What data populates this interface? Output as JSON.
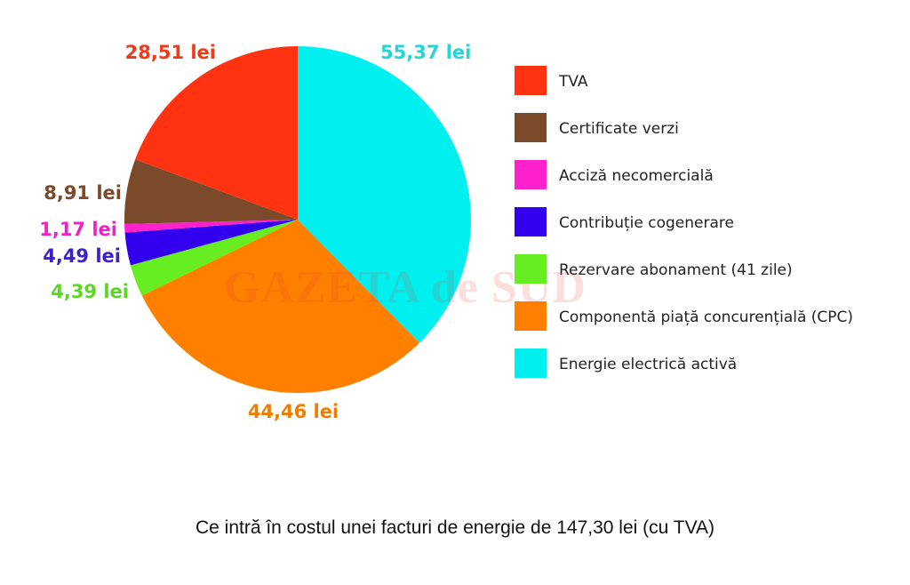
{
  "chart_data": {
    "type": "pie",
    "title": "Ce intră în costul unei facturi de energie de 147,30 lei (cu TVA)",
    "slices": [
      {
        "name": "Energie electrică activă",
        "value": 55.37,
        "label": "55,37 lei",
        "color": "#00f0f0",
        "label_color": "#22d6d6"
      },
      {
        "name": "Componentă piață concurențială (CPC)",
        "value": 44.46,
        "label": "44,46 lei",
        "color": "#ff8000",
        "label_color": "#f07d00"
      },
      {
        "name": "Rezervare abonament (41 zile)",
        "value": 4.39,
        "label": "4,39 lei",
        "color": "#66ee22",
        "label_color": "#5bd824"
      },
      {
        "name": "Contribuție cogenerare",
        "value": 4.49,
        "label": "4,49 lei",
        "color": "#3300ee",
        "label_color": "#3b1fd0"
      },
      {
        "name": "Acciză necomercială",
        "value": 1.17,
        "label": "1,17 lei",
        "color": "#ff22cc",
        "label_color": "#ee22c4"
      },
      {
        "name": "Certificate verzi",
        "value": 8.91,
        "label": "8,91 lei",
        "color": "#7a4a2a",
        "label_color": "#7a4a2a"
      },
      {
        "name": "TVA",
        "value": 28.51,
        "label": "28,51 lei",
        "color": "#ff3311",
        "label_color": "#f03a1a"
      }
    ],
    "legend_order": [
      "TVA",
      "Certificate verzi",
      "Acciză necomercială",
      "Contribuție cogenerare",
      "Rezervare abonament (41 zile)",
      "Componentă piață concurențială (CPC)",
      "Energie electrică activă"
    ],
    "legend_position": "right"
  },
  "watermark": "GAZETA de SUD"
}
